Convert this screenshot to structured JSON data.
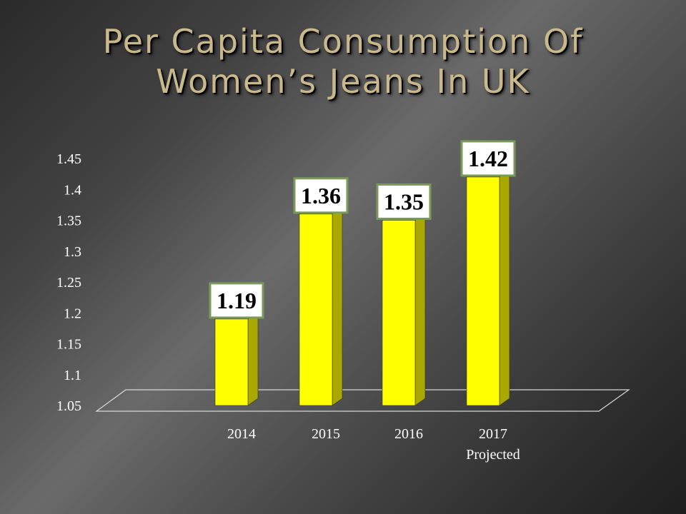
{
  "title_line1": "Per Capita Consumption Of",
  "title_line2": "Women’s  Jeans In UK",
  "chart_data": {
    "type": "bar",
    "categories": [
      "2014",
      "2015",
      "2016",
      "2017\nProjected"
    ],
    "values": [
      1.19,
      1.36,
      1.35,
      1.42
    ],
    "data_labels": [
      "1.19",
      "1.36",
      "1.35",
      "1.42"
    ],
    "y_ticks": [
      "1.05",
      "1.1",
      "1.15",
      "1.2",
      "1.25",
      "1.3",
      "1.35",
      "1.4",
      "1.45"
    ],
    "ylim": [
      1.05,
      1.45
    ],
    "grid": false,
    "legend": "none",
    "bar_color": "#ffff00",
    "bar_side_color": "#a8a800",
    "label_border_color": "#7a9a5a"
  }
}
